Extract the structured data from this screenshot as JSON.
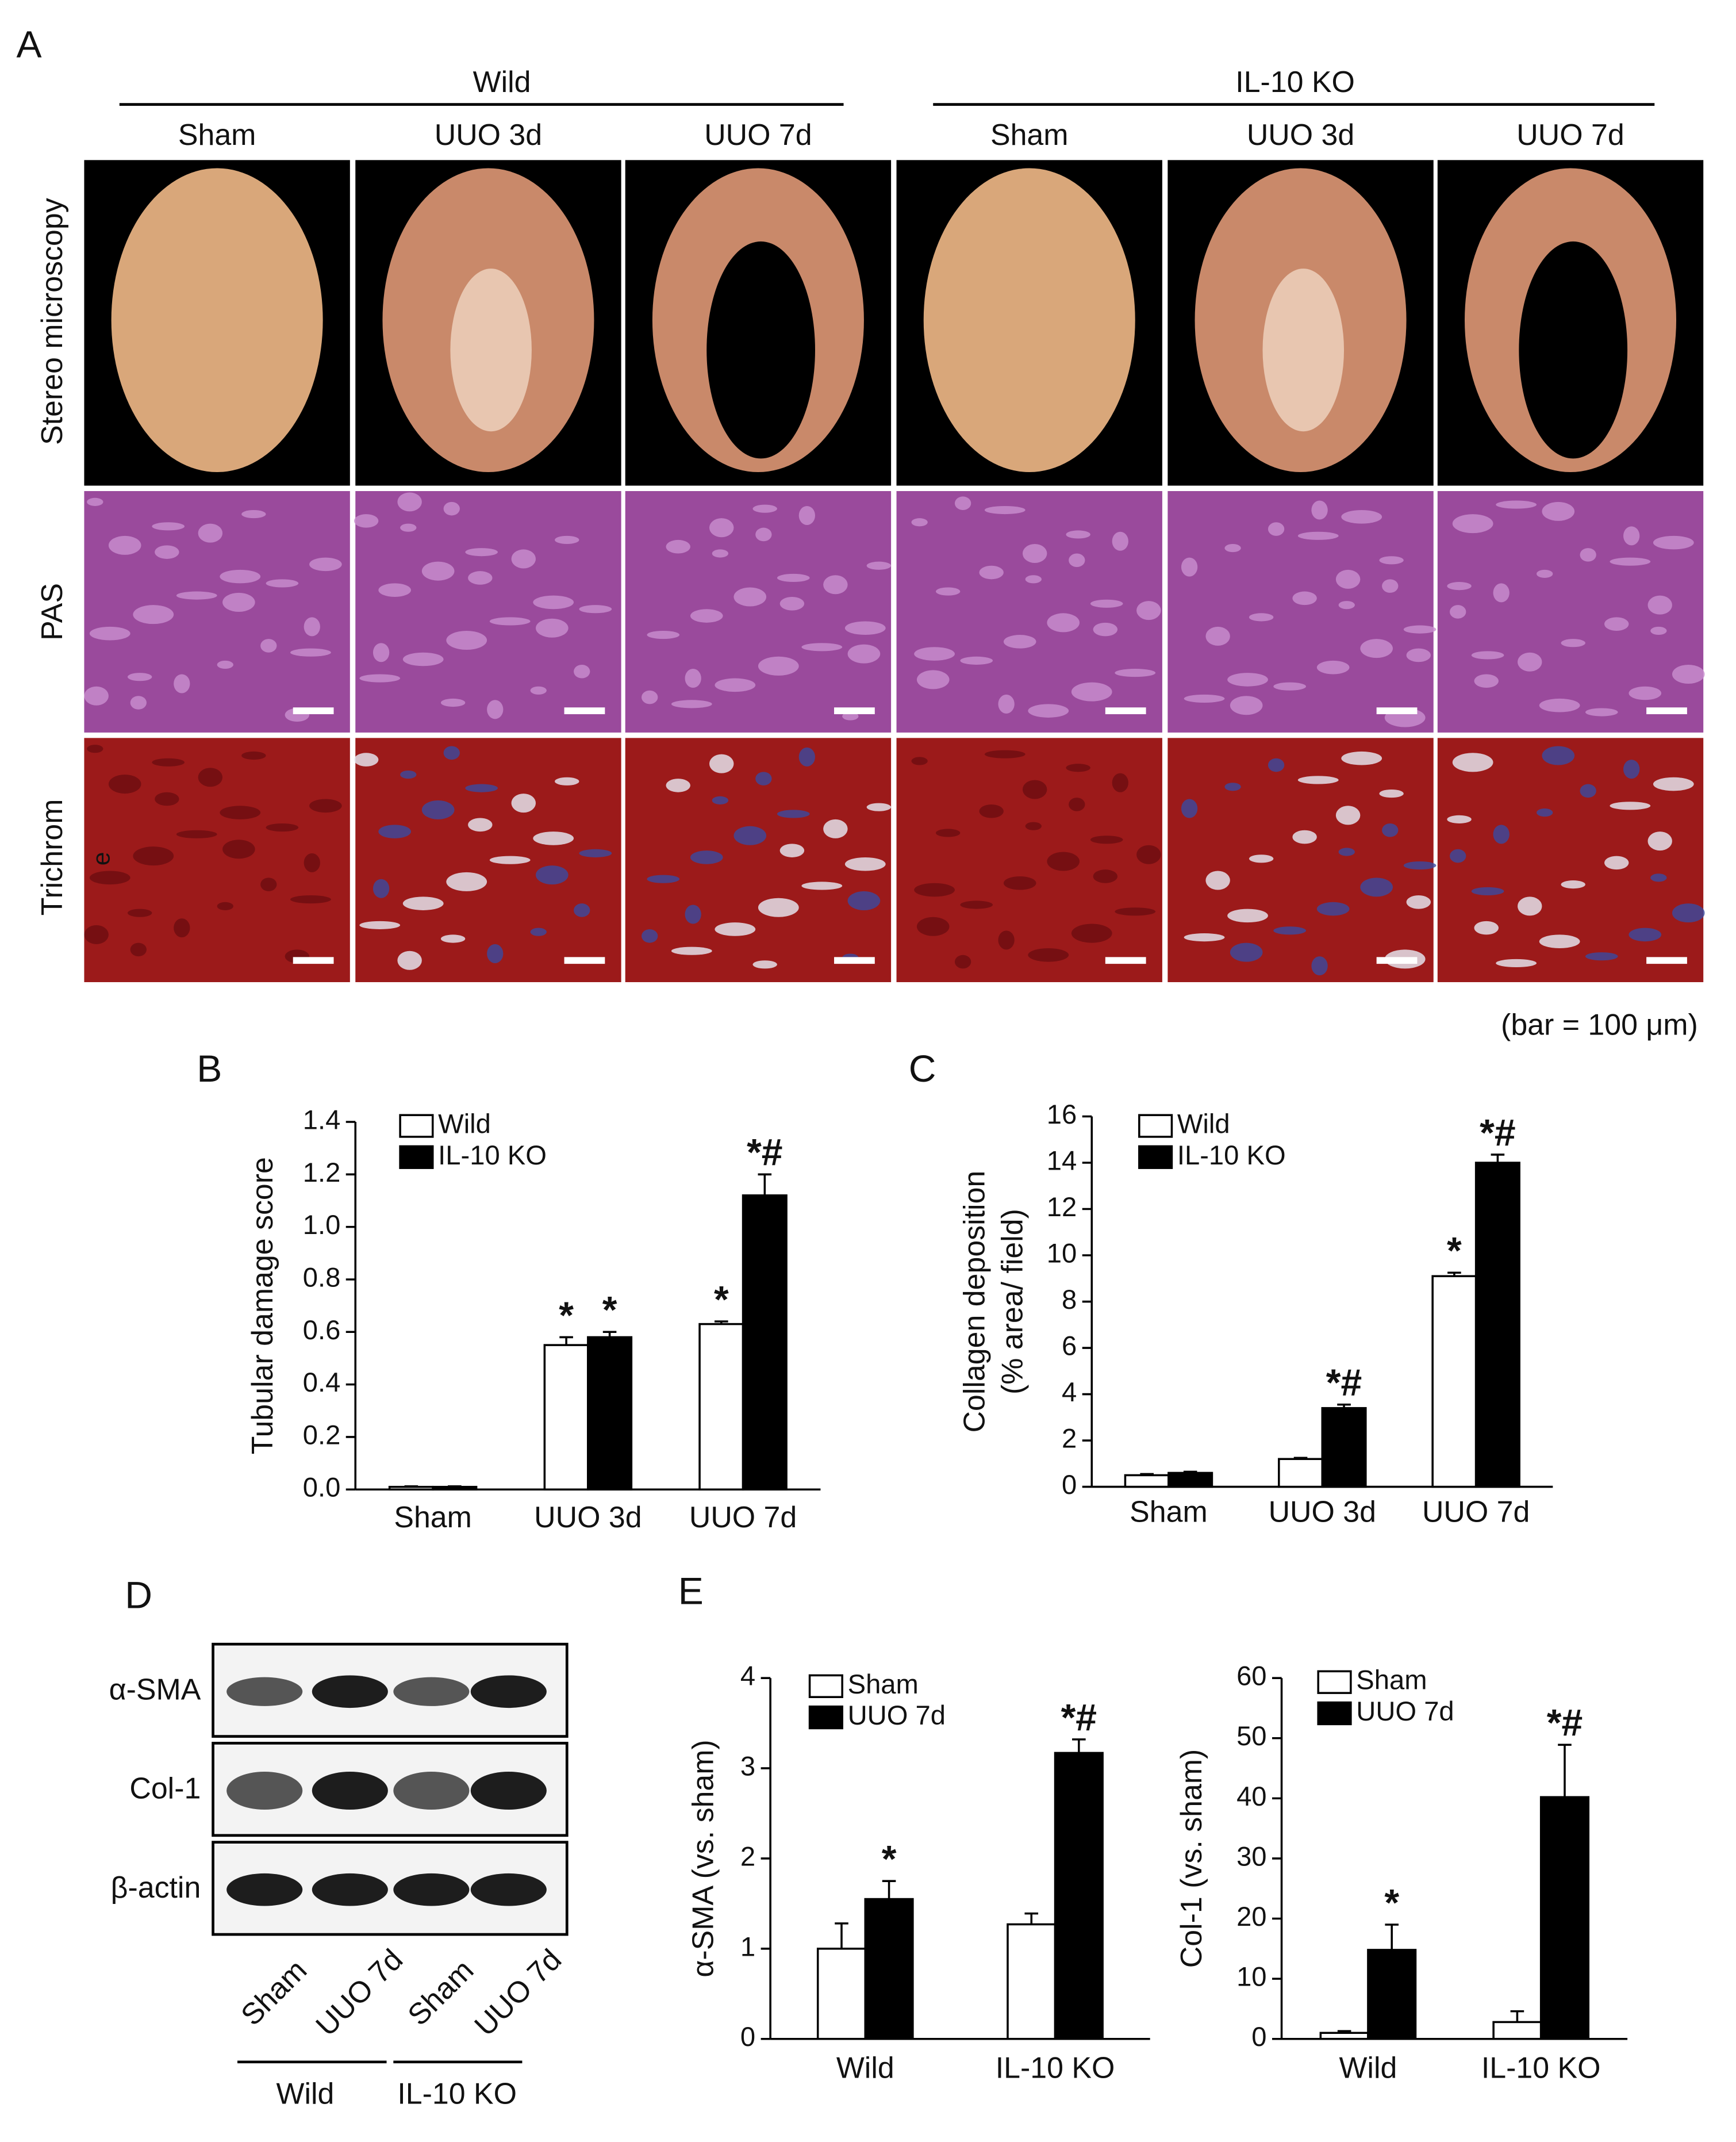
{
  "panel_a": {
    "label": "A",
    "groups": [
      "Wild",
      "IL-10 KO"
    ],
    "columns": [
      "Sham",
      "UUO 3d",
      "UUO 7d",
      "Sham",
      "UUO 3d",
      "UUO 7d"
    ],
    "rows": [
      "Stereo microscopy",
      "PAS",
      "Trichrom"
    ],
    "row_label_fragment": "e",
    "note": "(bar = 100 μm)"
  },
  "panel_d": {
    "label": "D",
    "blots": [
      "α-SMA",
      "Col-1",
      "β-actin"
    ],
    "lanes": [
      "Sham",
      "UUO 7d",
      "Sham",
      "UUO 7d"
    ],
    "groups": [
      "Wild",
      "IL-10 KO"
    ]
  },
  "chart_data": [
    {
      "type": "bar",
      "panel_label": "B",
      "ylabel": [
        "Tubular damage score"
      ],
      "categories": [
        "Sham",
        "UUO 3d",
        "UUO 7d"
      ],
      "series": [
        {
          "name": "Wild",
          "color": "#ffffff",
          "values": [
            0.01,
            0.55,
            0.63
          ],
          "errors": [
            0.002,
            0.03,
            0.01
          ]
        },
        {
          "name": "IL-10 KO",
          "color": "#000000",
          "values": [
            0.01,
            0.58,
            1.12
          ],
          "errors": [
            0.002,
            0.02,
            0.08
          ]
        }
      ],
      "annotations": [
        {
          "text": "*",
          "series": "Wild",
          "category": "UUO 3d"
        },
        {
          "text": "*",
          "series": "IL-10 KO",
          "category": "UUO 3d"
        },
        {
          "text": "*",
          "series": "Wild",
          "category": "UUO 7d"
        },
        {
          "text": "*#",
          "series": "IL-10 KO",
          "category": "UUO 7d"
        }
      ],
      "ylim": [
        0,
        1.4
      ],
      "yticks": [
        {
          "value": 0,
          "label": "0.0"
        },
        0.2,
        0.4,
        0.6,
        0.8,
        {
          "value": 1,
          "label": "1.0"
        },
        1.2,
        1.4
      ],
      "legend": "upper left"
    },
    {
      "type": "bar",
      "panel_label": "C",
      "ylabel": [
        "Collagen deposition",
        "(% area/ field)"
      ],
      "categories": [
        "Sham",
        "UUO 3d",
        "UUO 7d"
      ],
      "series": [
        {
          "name": "Wild",
          "color": "#ffffff",
          "values": [
            0.5,
            1.2,
            9.1
          ],
          "errors": [
            0.05,
            0.05,
            0.15
          ]
        },
        {
          "name": "IL-10 KO",
          "color": "#000000",
          "values": [
            0.6,
            3.4,
            14.0
          ],
          "errors": [
            0.05,
            0.15,
            0.35
          ]
        }
      ],
      "annotations": [
        {
          "text": "*#",
          "series": "IL-10 KO",
          "category": "UUO 3d"
        },
        {
          "text": "*",
          "series": "Wild",
          "category": "UUO 7d"
        },
        {
          "text": "*#",
          "series": "IL-10 KO",
          "category": "UUO 7d"
        }
      ],
      "ylim": [
        0,
        16
      ],
      "yticks": [
        0,
        2,
        4,
        6,
        8,
        10,
        12,
        14,
        16
      ],
      "legend": "upper left"
    },
    {
      "type": "bar",
      "panel_label": "E",
      "ylabel": [
        "α-SMA (vs. sham)"
      ],
      "categories": [
        "Wild",
        "IL-10 KO"
      ],
      "series": [
        {
          "name": "Sham",
          "color": "#ffffff",
          "values": [
            1.0,
            1.27
          ],
          "errors": [
            0.28,
            0.12
          ]
        },
        {
          "name": "UUO 7d",
          "color": "#000000",
          "values": [
            1.55,
            3.17
          ],
          "errors": [
            0.2,
            0.15
          ]
        }
      ],
      "annotations": [
        {
          "text": "*",
          "series": "UUO 7d",
          "category": "Wild"
        },
        {
          "text": "*#",
          "series": "UUO 7d",
          "category": "IL-10 KO"
        }
      ],
      "ylim": [
        0,
        4
      ],
      "yticks": [
        0,
        1,
        2,
        3,
        4
      ],
      "legend": "upper left"
    },
    {
      "type": "bar",
      "ylabel": [
        "Col-1 (vs. sham)"
      ],
      "categories": [
        "Wild",
        "IL-10 KO"
      ],
      "series": [
        {
          "name": "Sham",
          "color": "#ffffff",
          "values": [
            1.0,
            2.8
          ],
          "errors": [
            0.3,
            1.8
          ]
        },
        {
          "name": "UUO 7d",
          "color": "#000000",
          "values": [
            14.8,
            40.2
          ],
          "errors": [
            4.2,
            8.7
          ]
        }
      ],
      "annotations": [
        {
          "text": "*",
          "series": "UUO 7d",
          "category": "Wild"
        },
        {
          "text": "*#",
          "series": "UUO 7d",
          "category": "IL-10 KO"
        }
      ],
      "ylim": [
        0,
        60
      ],
      "yticks": [
        0,
        10,
        20,
        30,
        40,
        50,
        60
      ],
      "legend": "upper left"
    }
  ]
}
